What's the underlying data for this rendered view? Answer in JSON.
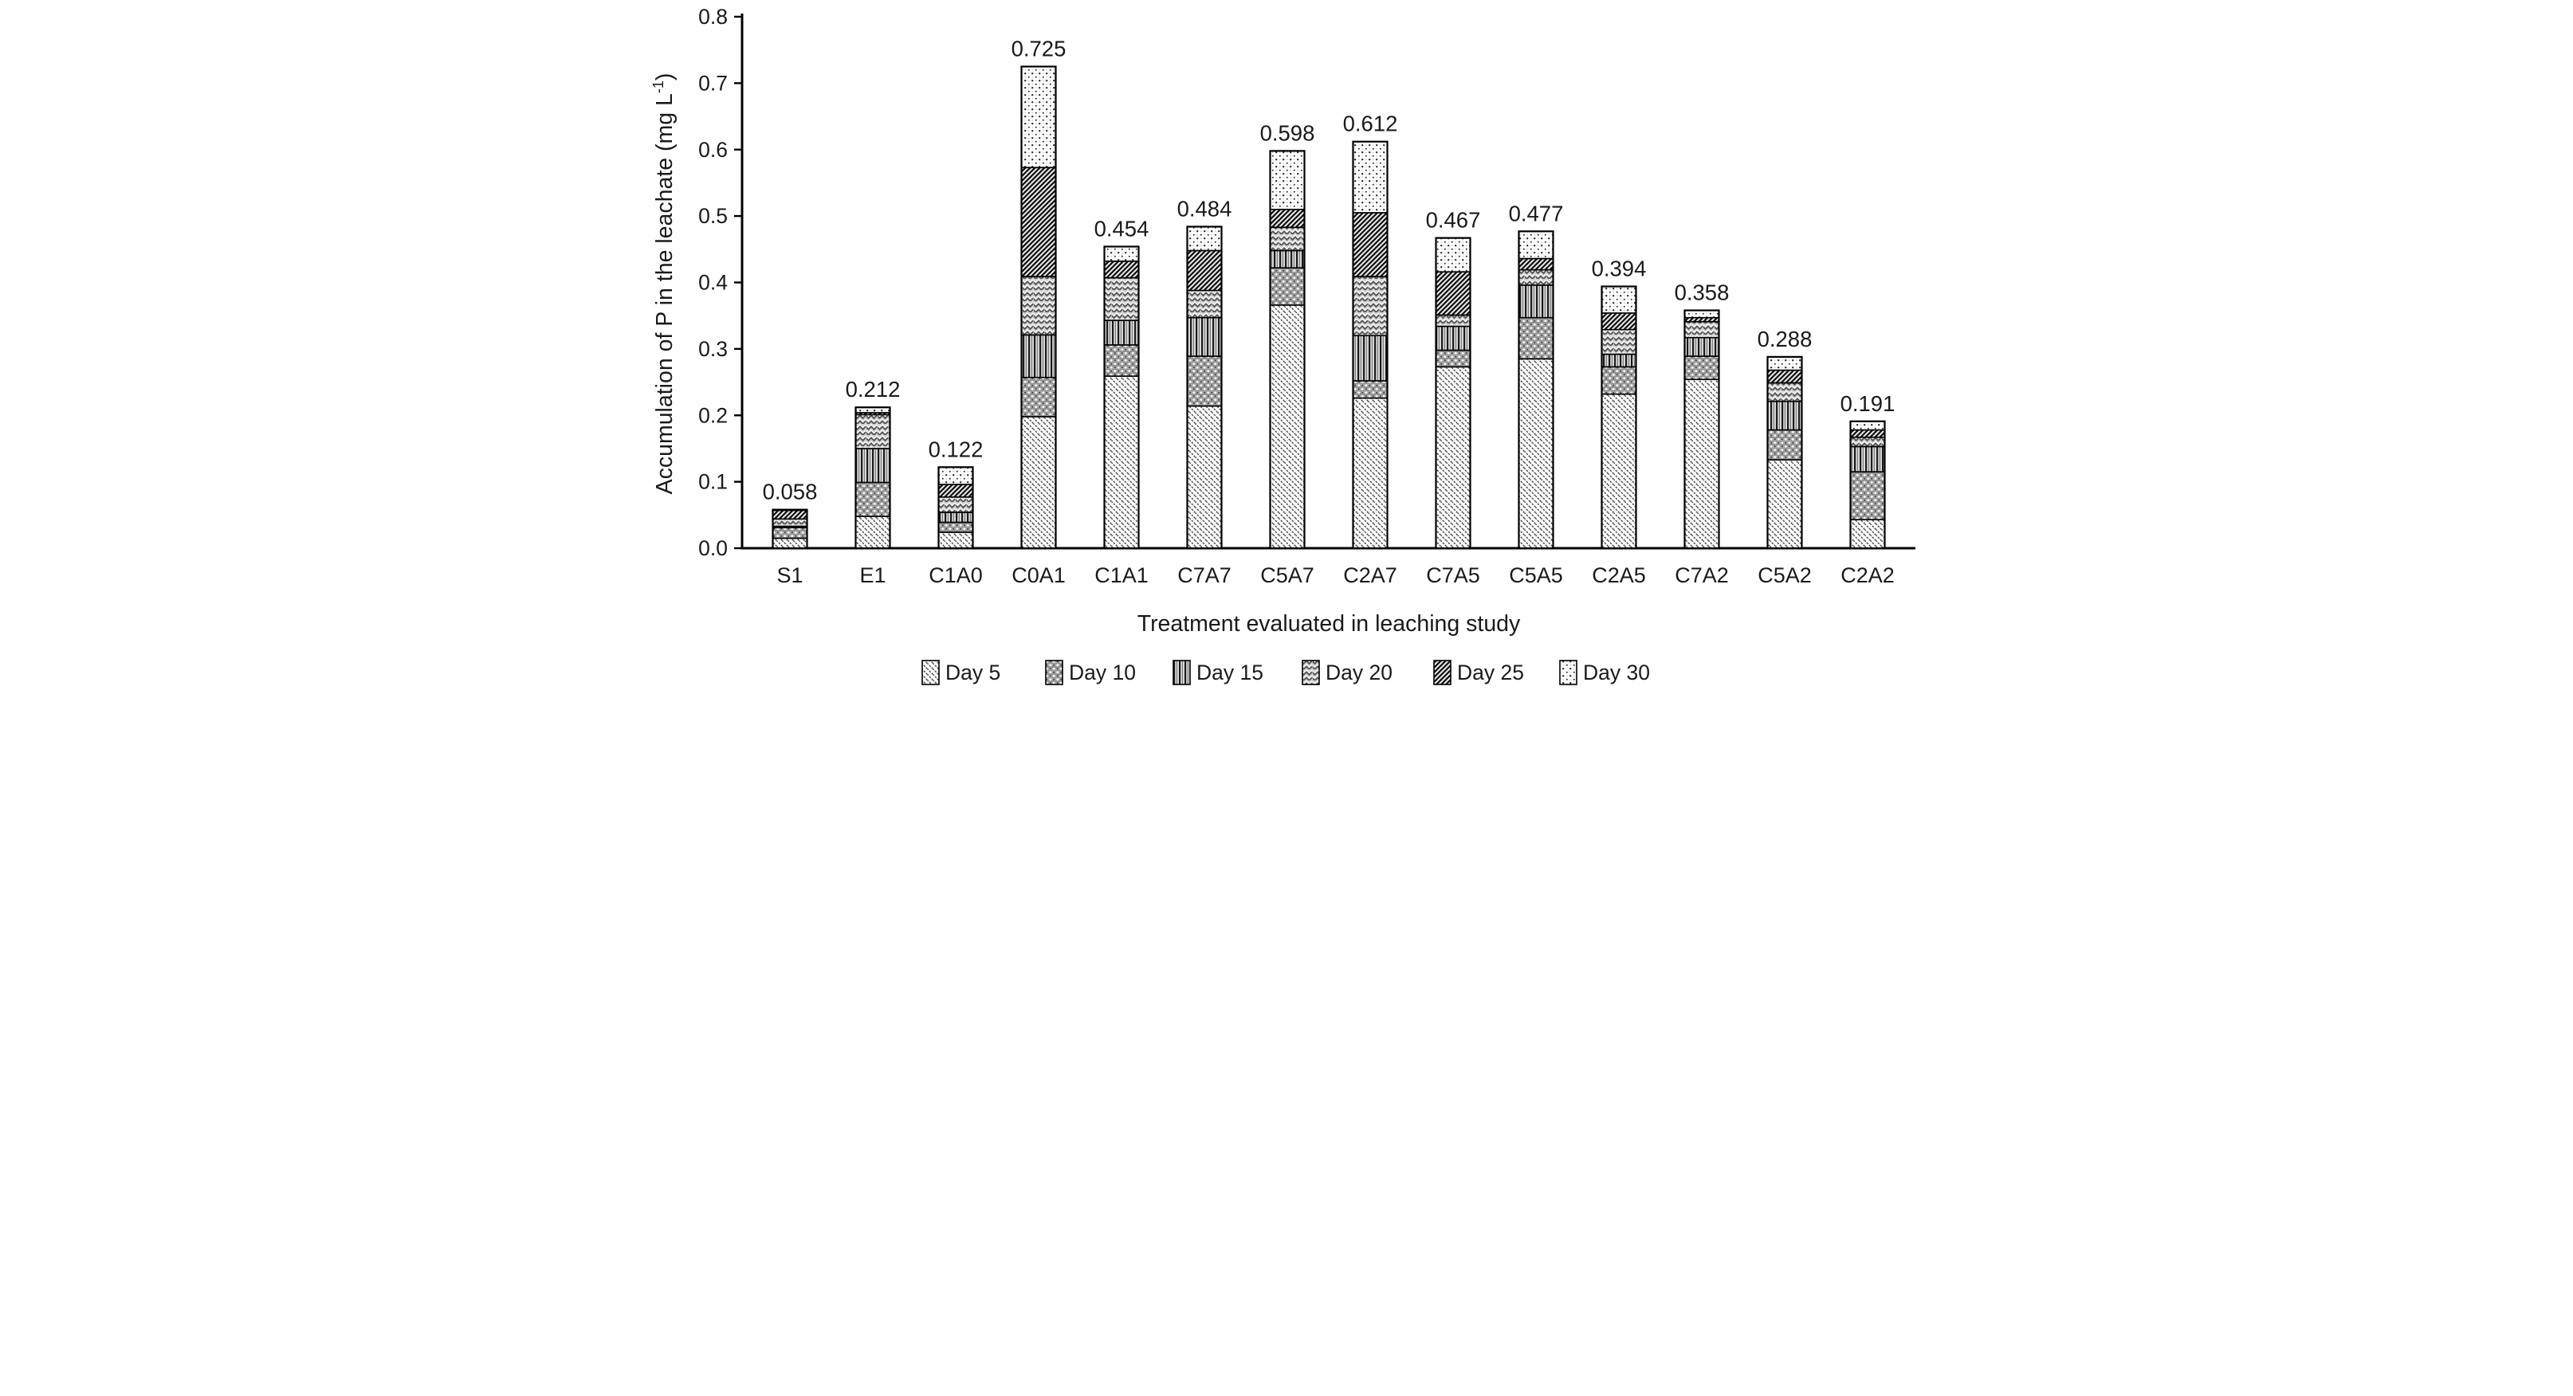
{
  "chart_data": {
    "type": "bar",
    "subtype": "stacked",
    "title": "",
    "xlabel": "Treatment evaluated in leaching study",
    "ylabel": "Accumulation of P in the leachate (mg L⁻¹)",
    "ylabel_main": "Accumulation of P in the leachate (mg L",
    "ylabel_sup": "-1",
    "ylabel_end": ")",
    "ylim": [
      0.0,
      0.8
    ],
    "ytick_step": 0.1,
    "yticks": [
      "0.0",
      "0.1",
      "0.2",
      "0.3",
      "0.4",
      "0.5",
      "0.6",
      "0.7",
      "0.8"
    ],
    "grid": false,
    "legend_position": "bottom",
    "categories": [
      "S1",
      "E1",
      "C1A0",
      "C0A1",
      "C1A1",
      "C7A7",
      "C5A7",
      "C2A7",
      "C7A5",
      "C5A5",
      "C2A5",
      "C7A2",
      "C5A2",
      "C2A2"
    ],
    "totals": [
      "0.058",
      "0.212",
      "0.122",
      "0.725",
      "0.454",
      "0.484",
      "0.598",
      "0.612",
      "0.467",
      "0.477",
      "0.394",
      "0.358",
      "0.288",
      "0.191"
    ],
    "series": [
      {
        "name": "Day 5",
        "pattern": "diagonal-light",
        "values": [
          0.015,
          0.048,
          0.024,
          0.198,
          0.259,
          0.214,
          0.366,
          0.226,
          0.273,
          0.285,
          0.232,
          0.254,
          0.133,
          0.043
        ]
      },
      {
        "name": "Day 10",
        "pattern": "gray-dots",
        "values": [
          0.016,
          0.051,
          0.015,
          0.059,
          0.047,
          0.075,
          0.056,
          0.026,
          0.025,
          0.062,
          0.041,
          0.035,
          0.045,
          0.072
        ]
      },
      {
        "name": "Day 15",
        "pattern": "vertical-lines",
        "values": [
          0.002,
          0.051,
          0.015,
          0.064,
          0.037,
          0.058,
          0.026,
          0.068,
          0.036,
          0.049,
          0.019,
          0.028,
          0.043,
          0.038
        ]
      },
      {
        "name": "Day 20",
        "pattern": "weave",
        "values": [
          0.011,
          0.051,
          0.023,
          0.088,
          0.064,
          0.041,
          0.035,
          0.089,
          0.017,
          0.023,
          0.037,
          0.024,
          0.028,
          0.014
        ]
      },
      {
        "name": "Day 25",
        "pattern": "diagonal-dark",
        "values": [
          0.013,
          0.003,
          0.019,
          0.164,
          0.025,
          0.06,
          0.027,
          0.096,
          0.065,
          0.017,
          0.025,
          0.006,
          0.019,
          0.011
        ]
      },
      {
        "name": "Day 30",
        "pattern": "sparse-dots",
        "values": [
          0.001,
          0.008,
          0.026,
          0.152,
          0.022,
          0.036,
          0.088,
          0.107,
          0.051,
          0.041,
          0.04,
          0.011,
          0.02,
          0.013
        ]
      }
    ],
    "colors": {
      "axis": "#000000",
      "text": "#1a1a1a",
      "bar_border": "#000000",
      "background": "#ffffff"
    }
  }
}
